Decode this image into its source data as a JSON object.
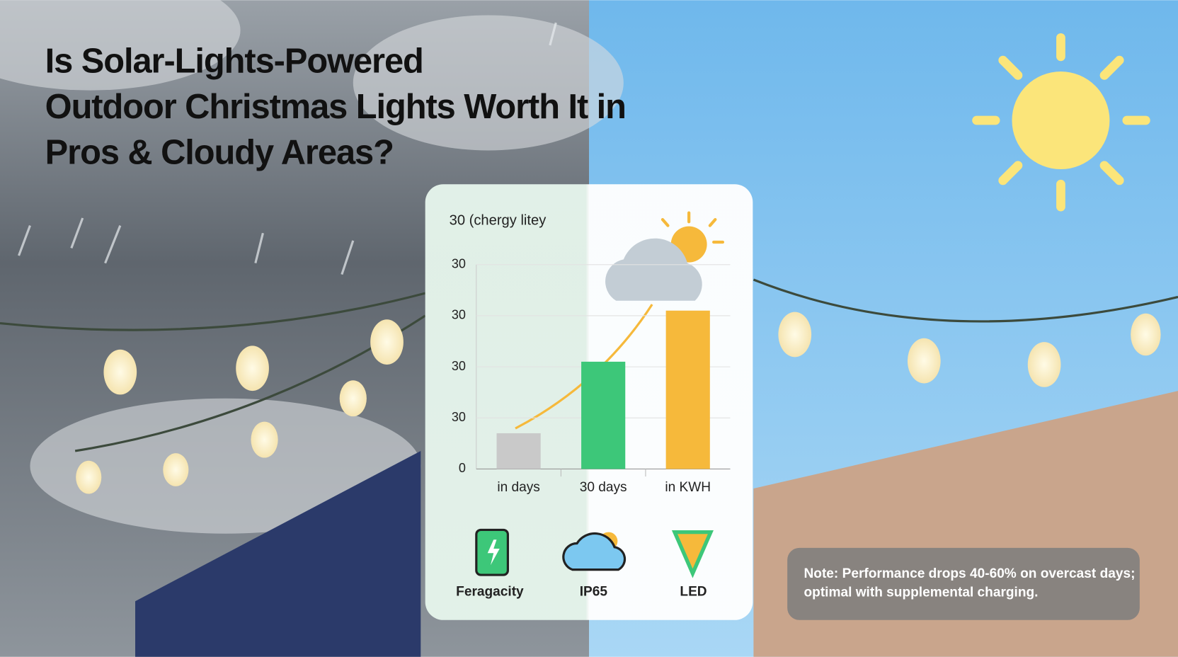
{
  "title": [
    "Is Solar-Lights-Powered",
    "Outdoor Christmas Lights Worth It in",
    "Pros & Cloudy Areas?"
  ],
  "chart_data": {
    "type": "bar",
    "title": "30 (chergy litey",
    "categories": [
      "in days",
      "30 days",
      "in KWH"
    ],
    "values": [
      7,
      21,
      31
    ],
    "colors": [
      "#c9c9c9",
      "#3dc779",
      "#f6b93b"
    ],
    "ylim": [
      0,
      40
    ],
    "yticks": [
      0,
      {
        "value": 10,
        "label": "30"
      },
      {
        "value": 20,
        "label": "30"
      },
      {
        "value": 30,
        "label": "30"
      },
      {
        "value": 40,
        "label": "30"
      }
    ],
    "grid": true
  },
  "features": [
    "Feragacity",
    "IP65",
    "LED"
  ],
  "note": [
    "Note: Performance drops 40-60% on overcast days;",
    "optimal with supplemental charging."
  ]
}
